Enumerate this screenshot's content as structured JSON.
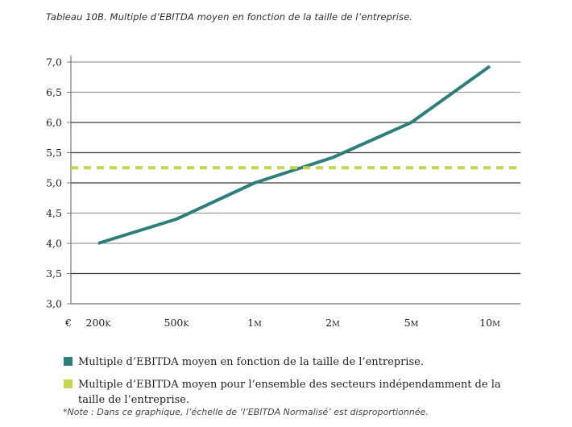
{
  "title": "Tableau 10B. Multiple d’EBITDA moyen en fonction de la taille de l’entreprise.",
  "note": "*Note : Dans ce graphique, l’échelle de ‘l’EBITDA Normalisé’ est disproportionnée.",
  "chart_data": {
    "type": "line",
    "title": "Tableau 10B. Multiple d’EBITDA moyen en fonction de la taille de l’entreprise.",
    "x_axis_prefix": "€",
    "categories": [
      "200K",
      "500K",
      "1M",
      "2M",
      "5M",
      "10M"
    ],
    "y_ticks": [
      "7,0",
      "6,5",
      "6,0",
      "5,5",
      "5,0",
      "4,5",
      "4,0",
      "3,5",
      "3,0"
    ],
    "ylim": [
      3.0,
      7.0
    ],
    "grid": true,
    "legend_position": "bottom",
    "series": [
      {
        "name": "Multiple d’EBITDA moyen en fonction de la taille de l’entreprise.",
        "color": "#2e7e7c",
        "style": "solid",
        "values": [
          4.0,
          4.4,
          5.0,
          5.42,
          6.0,
          6.93
        ]
      },
      {
        "name": "Multiple d’EBITDA moyen pour l’ensemble des secteurs indépendamment de la taille de l’entreprise.",
        "color": "#c6d44e",
        "style": "dashed",
        "values": [
          5.25,
          5.25,
          5.25,
          5.25,
          5.25,
          5.25
        ]
      }
    ]
  }
}
